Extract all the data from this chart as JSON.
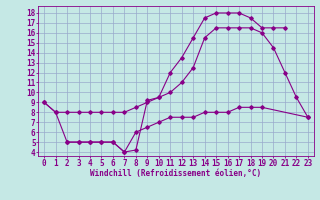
{
  "bg_color": "#c5e8e5",
  "line_color": "#880088",
  "grid_color": "#99aacc",
  "xlabel": "Windchill (Refroidissement éolien,°C)",
  "xlim_min": -0.5,
  "xlim_max": 23.5,
  "ylim_min": 3.6,
  "ylim_max": 18.7,
  "xticks": [
    0,
    1,
    2,
    3,
    4,
    5,
    6,
    7,
    8,
    9,
    10,
    11,
    12,
    13,
    14,
    15,
    16,
    17,
    18,
    19,
    20,
    21,
    22,
    23
  ],
  "yticks": [
    4,
    5,
    6,
    7,
    8,
    9,
    10,
    11,
    12,
    13,
    14,
    15,
    16,
    17,
    18
  ],
  "line1_x": [
    0,
    1,
    2,
    3,
    4,
    5,
    6,
    7,
    8,
    9,
    10,
    11,
    12,
    13,
    14,
    15,
    16,
    17,
    18,
    19,
    20,
    21,
    22,
    23
  ],
  "line1_y": [
    9.0,
    8.0,
    8.0,
    8.0,
    8.0,
    8.0,
    8.0,
    8.0,
    8.5,
    9.0,
    9.5,
    10.0,
    11.0,
    12.5,
    15.5,
    16.5,
    16.5,
    16.5,
    16.5,
    16.0,
    14.5,
    12.0,
    9.5,
    7.5
  ],
  "line2_x": [
    0,
    1,
    2,
    3,
    4,
    5,
    6,
    7,
    8,
    9,
    10,
    11,
    12,
    13,
    14,
    15,
    16,
    17,
    18,
    19,
    20,
    21
  ],
  "line2_y": [
    9.0,
    8.0,
    5.0,
    5.0,
    5.0,
    5.0,
    5.0,
    4.0,
    4.2,
    9.2,
    9.5,
    12.0,
    13.5,
    15.5,
    17.5,
    18.0,
    18.0,
    18.0,
    17.5,
    16.5,
    16.5,
    16.5
  ],
  "line3_x": [
    2,
    3,
    4,
    5,
    6,
    7,
    8,
    9,
    10,
    11,
    12,
    13,
    14,
    15,
    16,
    17,
    18,
    19,
    23
  ],
  "line3_y": [
    5.0,
    5.0,
    5.0,
    5.0,
    5.0,
    4.0,
    6.0,
    6.5,
    7.0,
    7.5,
    7.5,
    7.5,
    8.0,
    8.0,
    8.0,
    8.5,
    8.5,
    8.5,
    7.5
  ],
  "tick_fontsize": 5.5,
  "xlabel_fontsize": 5.5,
  "linewidth": 0.8,
  "markersize": 1.8
}
